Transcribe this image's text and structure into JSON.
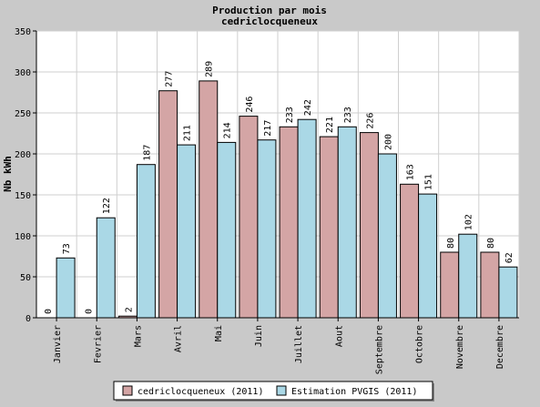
{
  "chart_data": {
    "type": "bar",
    "title": "Production par mois",
    "subtitle": "cedriclocqueneux",
    "ylabel": "Nb kWh",
    "xlabel": "",
    "ylim": [
      0,
      350
    ],
    "yticks": [
      0,
      50,
      100,
      150,
      200,
      250,
      300,
      350
    ],
    "grid": true,
    "legend_position": "bottom-center",
    "categories": [
      "Janvier",
      "Fevrier",
      "Mars",
      "Avril",
      "Mai",
      "Juin",
      "Juillet",
      "Aout",
      "Septembre",
      "Octobre",
      "Novembre",
      "Decembre"
    ],
    "series": [
      {
        "name": "cedriclocqueneux (2011)",
        "color": "#d4a5a5",
        "values": [
          0,
          0,
          2,
          277,
          289,
          246,
          233,
          221,
          226,
          163,
          80,
          80
        ]
      },
      {
        "name": "Estimation PVGIS (2011)",
        "color": "#aad8e6",
        "values": [
          73,
          122,
          187,
          211,
          214,
          217,
          242,
          233,
          200,
          151,
          102,
          62
        ]
      }
    ]
  }
}
